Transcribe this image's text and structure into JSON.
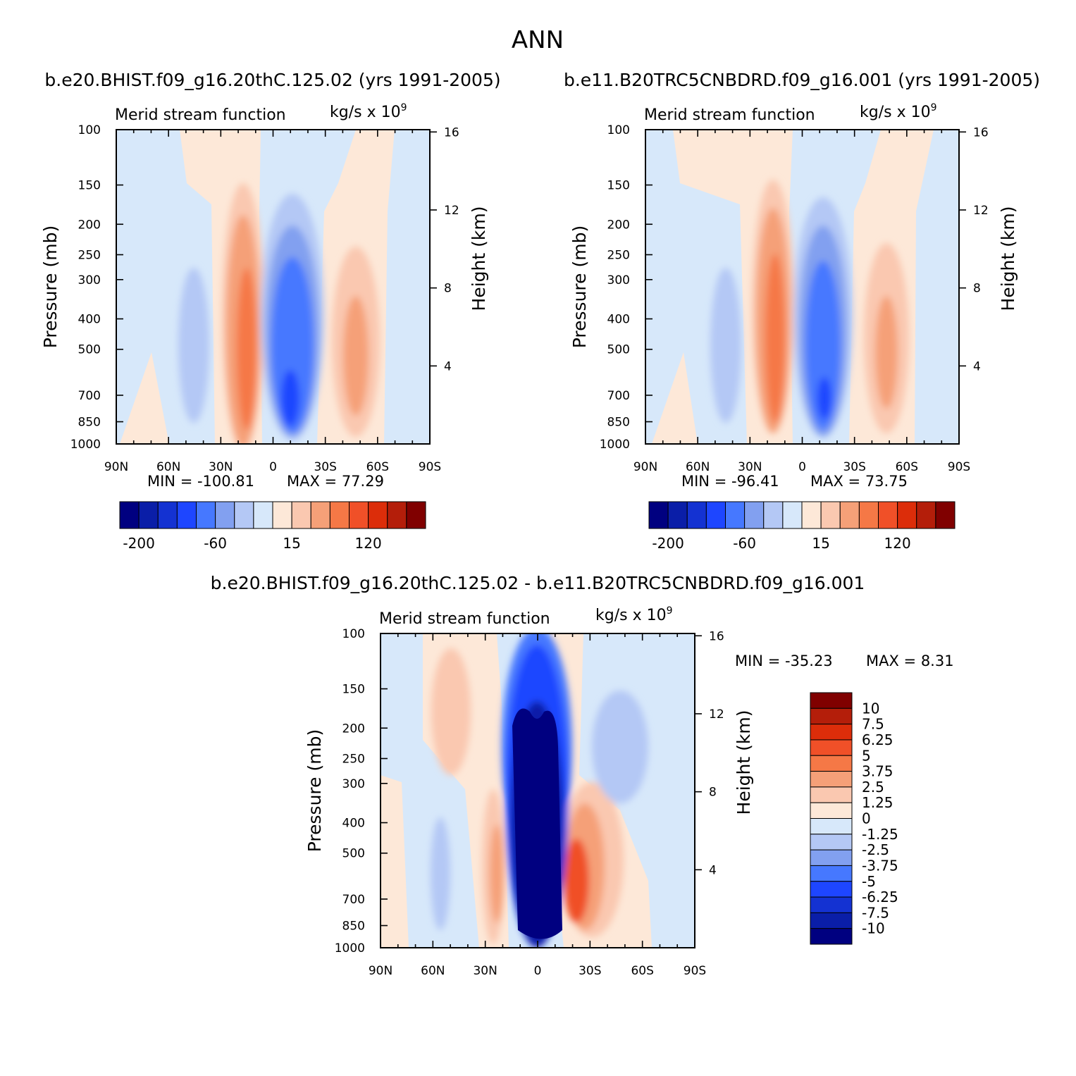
{
  "page": {
    "title": "ANN",
    "panel_titles": [
      "b.e20.BHIST.f09_g16.20thC.125.02 (yrs 1991-2005)",
      "b.e11.B20TRC5CNBDRD.f09_g16.001 (yrs 1991-2005)",
      "b.e20.BHIST.f09_g16.20thC.125.02 - b.e11.B20TRC5CNBDRD.f09_g16.001"
    ]
  },
  "chart_data": [
    {
      "type": "heatmap",
      "title": "b.e20.BHIST.f09_g16.20thC.125.02 (yrs 1991-2005)",
      "subtitle_left": "Merid stream function",
      "units": "kg/s x 10^9",
      "ylabel": "Pressure (mb)",
      "ylabel_right": "Height (km)",
      "x_ticks": [
        "90N",
        "60N",
        "30N",
        "0",
        "30S",
        "60S",
        "90S"
      ],
      "y_ticks": [
        100,
        150,
        200,
        250,
        300,
        400,
        500,
        700,
        850,
        1000
      ],
      "y_ticks_right": [
        16,
        12,
        8,
        4
      ],
      "ylim": [
        1000,
        100
      ],
      "min_label": "MIN = -100.81",
      "max_label": "MAX = 77.29",
      "min": -100.81,
      "max": 77.29,
      "colorbar_labels": [
        "-200",
        "-60",
        "15",
        "120"
      ]
    },
    {
      "type": "heatmap",
      "title": "b.e11.B20TRC5CNBDRD.f09_g16.001 (yrs 1991-2005)",
      "subtitle_left": "Merid stream function",
      "units": "kg/s x 10^9",
      "ylabel": "Pressure (mb)",
      "ylabel_right": "Height (km)",
      "x_ticks": [
        "90N",
        "60N",
        "30N",
        "0",
        "30S",
        "60S",
        "90S"
      ],
      "y_ticks": [
        100,
        150,
        200,
        250,
        300,
        400,
        500,
        700,
        850,
        1000
      ],
      "y_ticks_right": [
        16,
        12,
        8,
        4
      ],
      "ylim": [
        1000,
        100
      ],
      "min_label": "MIN = -96.41",
      "max_label": "MAX = 73.75",
      "min": -96.41,
      "max": 73.75,
      "colorbar_labels": [
        "-200",
        "-60",
        "15",
        "120"
      ]
    },
    {
      "type": "heatmap",
      "title": "b.e20.BHIST.f09_g16.20thC.125.02 - b.e11.B20TRC5CNBDRD.f09_g16.001",
      "subtitle_left": "Merid stream function",
      "units": "kg/s x 10^9",
      "ylabel": "Pressure (mb)",
      "ylabel_right": "Height (km)",
      "x_ticks": [
        "90N",
        "60N",
        "30N",
        "0",
        "30S",
        "60S",
        "90S"
      ],
      "y_ticks": [
        100,
        150,
        200,
        250,
        300,
        400,
        500,
        700,
        850,
        1000
      ],
      "y_ticks_right": [
        16,
        12,
        8,
        4
      ],
      "ylim": [
        1000,
        100
      ],
      "min_label": "MIN = -35.23",
      "max_label": "MAX = 8.31",
      "min": -35.23,
      "max": 8.31,
      "colorbar_labels": [
        "10",
        "7.5",
        "6.25",
        "5",
        "3.75",
        "2.5",
        "1.25",
        "0",
        "-1.25",
        "-2.5",
        "-3.75",
        "-5",
        "-6.25",
        "-7.5",
        "-10"
      ]
    }
  ],
  "colors": {
    "palette": [
      "#000080",
      "#0a1ea8",
      "#1432d2",
      "#1e46ff",
      "#4678ff",
      "#82a0f0",
      "#b4c8f5",
      "#d7e8fa",
      "#fde8d8",
      "#fac8b0",
      "#f5a078",
      "#f57846",
      "#f05028",
      "#dc2d0a",
      "#b41e0a",
      "#800000"
    ]
  }
}
